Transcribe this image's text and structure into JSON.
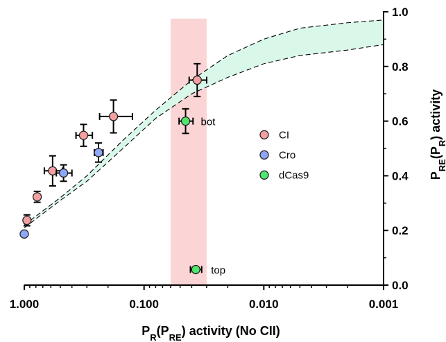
{
  "chart_data": {
    "type": "scatter",
    "x_scale": "log",
    "x_reversed": true,
    "xlim": [
      1.0,
      0.001
    ],
    "ylim": [
      0.0,
      1.0
    ],
    "x_ticks": [
      1.0,
      0.1,
      0.01,
      0.001
    ],
    "x_tick_labels": [
      "1.000",
      "0.100",
      "0.010",
      "0.001"
    ],
    "y_ticks": [
      0.0,
      0.2,
      0.4,
      0.6,
      0.8,
      1.0
    ],
    "y_tick_labels": [
      "0.0",
      "0.2",
      "0.4",
      "0.6",
      "0.8",
      "1.0"
    ],
    "y_axis_side": "right",
    "grid": false,
    "legend_position": "right-middle",
    "xlabel": {
      "main": "P",
      "sub1": "R",
      "paren_open": "(P",
      "sub2": "RE",
      "rest": ") activity (No CII)"
    },
    "ylabel": {
      "main": "P",
      "sub1": "RE",
      "paren_open": "(P",
      "sub2": "R",
      "rest": ") activity"
    },
    "shaded_band": {
      "x_range": [
        0.06,
        0.03
      ],
      "color": "#fbd5d5"
    },
    "model_band": {
      "color": "#d9f8ea",
      "x": [
        1.0,
        0.5,
        0.3,
        0.15,
        0.08,
        0.04,
        0.02,
        0.01,
        0.005,
        0.002,
        0.001
      ],
      "upper": [
        0.22,
        0.32,
        0.4,
        0.53,
        0.64,
        0.75,
        0.84,
        0.9,
        0.94,
        0.96,
        0.97
      ],
      "lower": [
        0.21,
        0.31,
        0.38,
        0.5,
        0.61,
        0.7,
        0.76,
        0.81,
        0.84,
        0.86,
        0.88
      ]
    },
    "series": [
      {
        "name": "CI",
        "color": "#f4a0a0",
        "points": [
          {
            "x": 0.95,
            "y": 0.237,
            "xerr": 0.05,
            "yerr": 0.02
          },
          {
            "x": 0.78,
            "y": 0.323,
            "xerr": 0.03,
            "yerr": 0.02
          },
          {
            "x": 0.58,
            "y": 0.418,
            "xerr": 0.1,
            "yerr": 0.055
          },
          {
            "x": 0.32,
            "y": 0.548,
            "xerr": 0.05,
            "yerr": 0.04
          },
          {
            "x": 0.18,
            "y": 0.617,
            "xerr": 0.055,
            "yerr": 0.06
          },
          {
            "x": 0.036,
            "y": 0.75,
            "xerr": 0.006,
            "yerr": 0.06
          }
        ]
      },
      {
        "name": "Cro",
        "color": "#8ea7f7",
        "points": [
          {
            "x": 1.0,
            "y": 0.187,
            "xerr": 0.0,
            "yerr": 0.0
          },
          {
            "x": 0.47,
            "y": 0.41,
            "xerr": 0.07,
            "yerr": 0.03
          },
          {
            "x": 0.24,
            "y": 0.485,
            "xerr": 0.02,
            "yerr": 0.035
          }
        ]
      },
      {
        "name": "dCas9",
        "color": "#4ee86f",
        "points": [
          {
            "x": 0.045,
            "y": 0.6,
            "xerr": 0.006,
            "yerr": 0.045,
            "label": "bot"
          },
          {
            "x": 0.037,
            "y": 0.057,
            "xerr": 0.004,
            "yerr": 0.0,
            "label": "top"
          }
        ]
      }
    ]
  }
}
